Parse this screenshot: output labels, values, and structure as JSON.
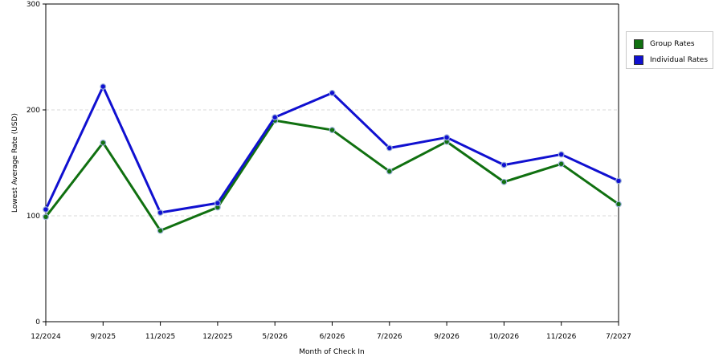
{
  "chart_data": {
    "type": "line",
    "categories": [
      "12/2024",
      "9/2025",
      "11/2025",
      "12/2025",
      "5/2026",
      "6/2026",
      "7/2026",
      "9/2026",
      "10/2026",
      "11/2026",
      "7/2027"
    ],
    "series": [
      {
        "name": "Group Rates",
        "color": "#107010",
        "values": [
          99,
          169,
          86,
          108,
          190,
          181,
          142,
          170,
          132,
          149,
          111
        ]
      },
      {
        "name": "Individual Rates",
        "color": "#1010d0",
        "values": [
          106,
          222,
          103,
          112,
          193,
          216,
          164,
          174,
          148,
          158,
          133
        ]
      }
    ],
    "xlabel": "Month of Check In",
    "ylabel": "Lowest Average Rate (USD)",
    "ylim": [
      0,
      300
    ],
    "yticks": [
      "0",
      "100",
      "200",
      "300"
    ],
    "grid": true,
    "legend_position": "right"
  }
}
